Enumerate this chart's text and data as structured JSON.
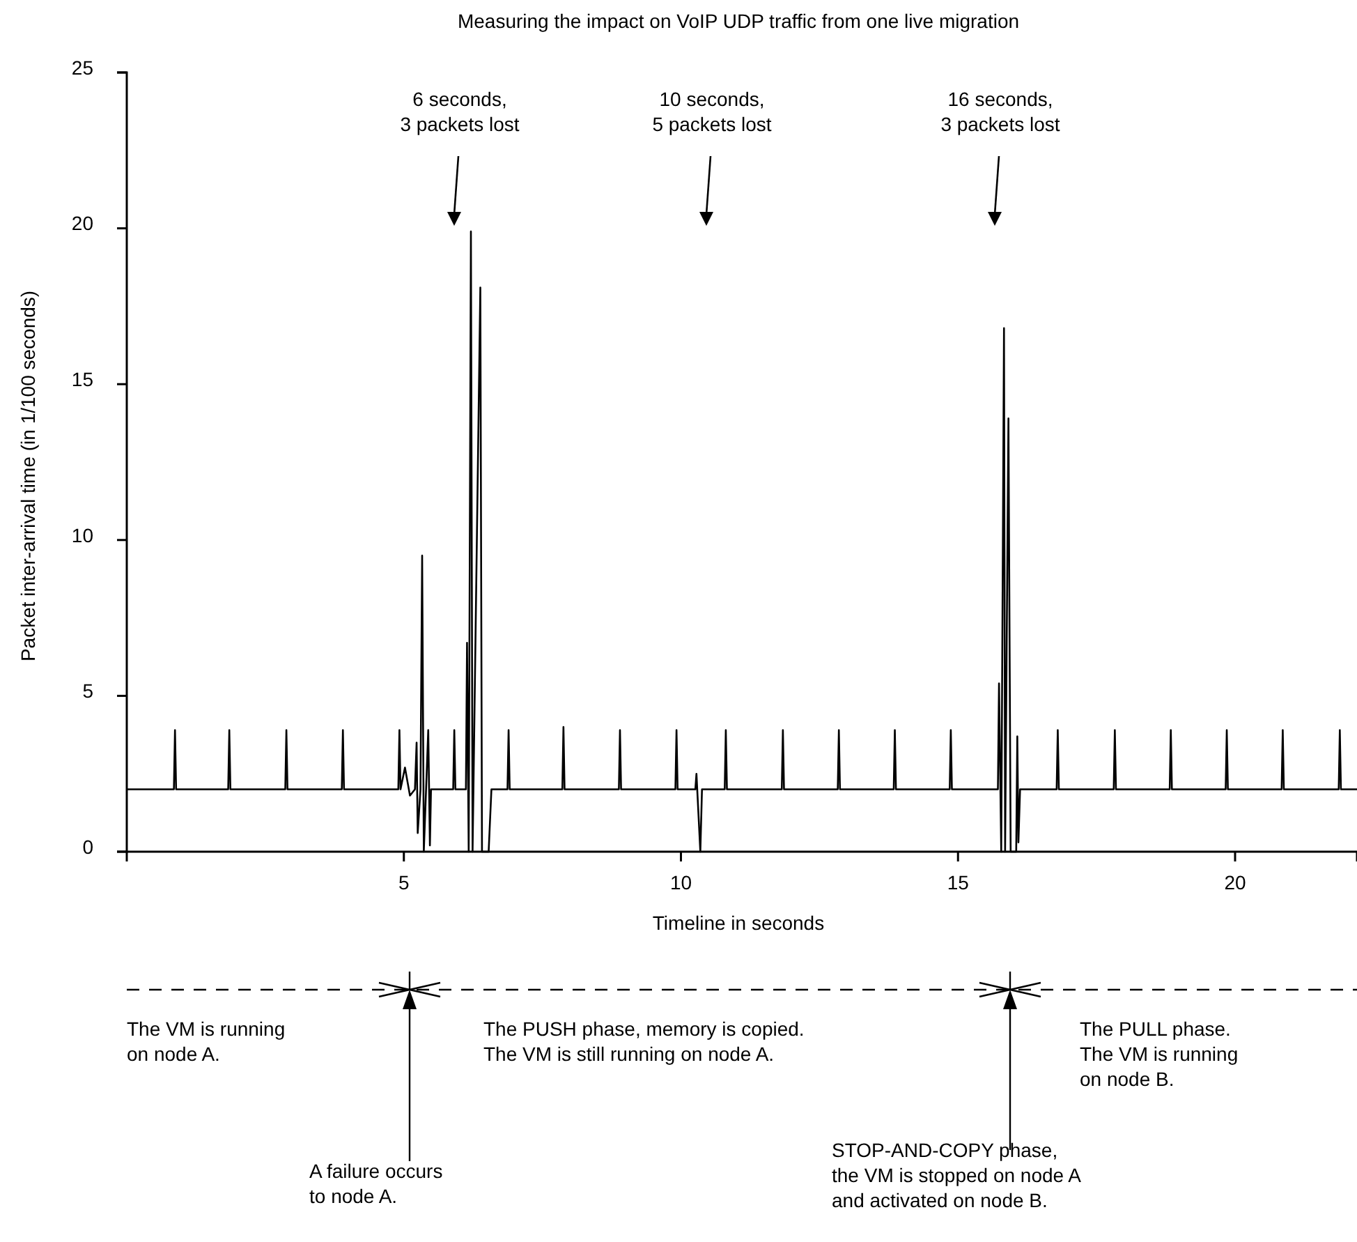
{
  "chart_data": {
    "type": "line",
    "title": "Measuring the impact on VoIP UDP traffic from one live migration",
    "xlabel": "Timeline in seconds",
    "ylabel": "Packet inter-arrival time (in 1/100 seconds)",
    "xlim": [
      0,
      22.2
    ],
    "xticks": [
      5,
      10,
      15,
      20
    ],
    "ylim": [
      0,
      25
    ],
    "yticks": [
      0,
      5,
      10,
      15,
      20,
      25
    ],
    "grid": false,
    "marker": "none",
    "line_style": "solid",
    "series": [
      {
        "color": "#000000",
        "x": [
          0,
          0.85,
          0.87,
          0.89,
          1.83,
          1.85,
          1.87,
          2.86,
          2.88,
          2.9,
          3.88,
          3.9,
          3.92,
          4.9,
          4.92,
          4.94,
          5.02,
          5.07,
          5.11,
          5.2,
          5.23,
          5.25,
          5.3,
          5.33,
          5.36,
          5.44,
          5.47,
          5.49,
          5.89,
          5.91,
          5.93,
          6.12,
          6.14,
          6.17,
          6.21,
          6.24,
          6.38,
          6.41,
          6.53,
          6.58,
          6.87,
          6.89,
          6.91,
          7.86,
          7.88,
          7.9,
          8.88,
          8.9,
          8.92,
          9.9,
          9.92,
          9.94,
          10.26,
          10.28,
          10.35,
          10.38,
          10.79,
          10.81,
          10.83,
          11.82,
          11.84,
          11.86,
          12.83,
          12.85,
          12.87,
          13.84,
          13.86,
          13.88,
          14.85,
          14.87,
          14.89,
          15.72,
          15.74,
          15.78,
          15.83,
          15.85,
          15.91,
          15.95,
          16.05,
          16.07,
          16.09,
          16.12,
          16.78,
          16.8,
          16.82,
          17.81,
          17.83,
          17.85,
          18.82,
          18.84,
          18.86,
          19.83,
          19.85,
          19.87,
          20.84,
          20.86,
          20.88,
          21.87,
          21.89,
          21.91,
          22.2
        ],
        "values": [
          2,
          2,
          3.9,
          2,
          2,
          3.9,
          2,
          2,
          3.9,
          2,
          2,
          3.9,
          2,
          2,
          3.9,
          2,
          2.7,
          2.2,
          1.8,
          2,
          3.5,
          0.6,
          2,
          9.5,
          0,
          3.9,
          0.2,
          2,
          2,
          3.9,
          2,
          2,
          6.7,
          0,
          19.9,
          0,
          18.1,
          0,
          0,
          2,
          2,
          3.9,
          2,
          2,
          4,
          2,
          2,
          3.9,
          2,
          2,
          3.9,
          2,
          2,
          2.5,
          0,
          2,
          2,
          3.9,
          2,
          2,
          3.9,
          2,
          2,
          3.9,
          2,
          2,
          3.9,
          2,
          2,
          3.9,
          2,
          2,
          5.4,
          0,
          16.8,
          0,
          13.9,
          0,
          0,
          3.7,
          0.3,
          2,
          2,
          3.9,
          2,
          2,
          3.9,
          2,
          2,
          3.9,
          2,
          2,
          3.9,
          2,
          2,
          3.9,
          2,
          2,
          3.9,
          2,
          2
        ]
      }
    ],
    "annotations": [
      "6 seconds,\n3 packets lost",
      "10 seconds,\n5 packets lost",
      "16 seconds,\n3 packets lost",
      "The VM is running\non node A.",
      "A failure occurs\nto node A.",
      "The PUSH phase, memory is copied.\nThe VM is still running on node A.",
      "STOP-AND-COPY phase,\nthe VM is stopped on node A\nand activated on node B.",
      "The PULL phase.\nThe VM is running\non node B."
    ]
  }
}
